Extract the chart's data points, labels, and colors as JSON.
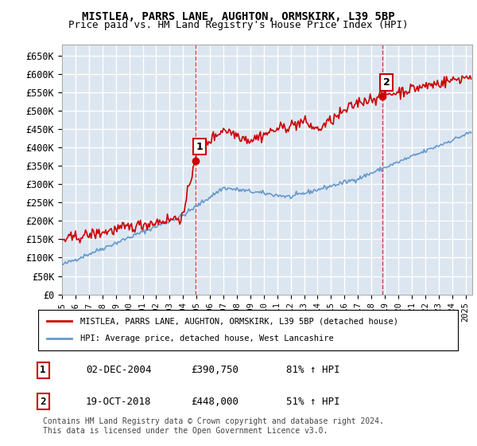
{
  "title": "MISTLEA, PARRS LANE, AUGHTON, ORMSKIRK, L39 5BP",
  "subtitle": "Price paid vs. HM Land Registry's House Price Index (HPI)",
  "ylabel_values": [
    "£0",
    "£50K",
    "£100K",
    "£150K",
    "£200K",
    "£250K",
    "£300K",
    "£350K",
    "£400K",
    "£450K",
    "£500K",
    "£550K",
    "£600K",
    "£650K"
  ],
  "yticks": [
    0,
    50000,
    100000,
    150000,
    200000,
    250000,
    300000,
    350000,
    400000,
    450000,
    500000,
    550000,
    600000,
    650000
  ],
  "ylim": [
    0,
    680000
  ],
  "xlim_start": 1995.0,
  "xlim_end": 2025.5,
  "background_color": "#dce6f1",
  "grid_color": "#ffffff",
  "red_line_color": "#cc0000",
  "blue_line_color": "#6699cc",
  "marker1_date": 2004.92,
  "marker2_date": 2018.8,
  "legend_label_red": "MISTLEA, PARRS LANE, AUGHTON, ORMSKIRK, L39 5BP (detached house)",
  "legend_label_blue": "HPI: Average price, detached house, West Lancashire",
  "table_row1": [
    "1",
    "02-DEC-2004",
    "£390,750",
    "81% ↑ HPI"
  ],
  "table_row2": [
    "2",
    "19-OCT-2018",
    "£448,000",
    "51% ↑ HPI"
  ],
  "footer": "Contains HM Land Registry data © Crown copyright and database right 2024.\nThis data is licensed under the Open Government Licence v3.0.",
  "xtick_years": [
    1995,
    1996,
    1997,
    1998,
    1999,
    2000,
    2001,
    2002,
    2003,
    2004,
    2005,
    2006,
    2007,
    2008,
    2009,
    2010,
    2011,
    2012,
    2013,
    2014,
    2015,
    2016,
    2017,
    2018,
    2019,
    2020,
    2021,
    2022,
    2023,
    2024,
    2025
  ]
}
